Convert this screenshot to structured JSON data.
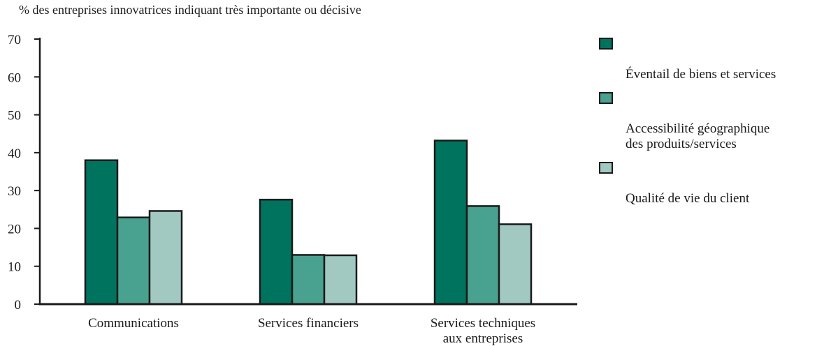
{
  "chart_data": {
    "type": "bar",
    "ylabel": "% des entreprises innovatrices indiquant très importante ou décisive",
    "ylim": [
      0,
      70
    ],
    "yticks": [
      0,
      10,
      20,
      30,
      40,
      50,
      60,
      70
    ],
    "categories": [
      "Communications",
      "Services financiers",
      "Services techniques\naux entreprises"
    ],
    "series": [
      {
        "name": "Éventail de biens et services",
        "color": "#00735e",
        "values": [
          38,
          27.6,
          43.2
        ]
      },
      {
        "name": "Accessibilité géographique\ndes produits/services",
        "color": "#49a290",
        "values": [
          22.9,
          13,
          25.9
        ]
      },
      {
        "name": "Qualité de vie du client",
        "color": "#a1c9c2",
        "values": [
          24.6,
          12.9,
          21.1
        ]
      }
    ],
    "legend_position": "right",
    "grid": false
  }
}
